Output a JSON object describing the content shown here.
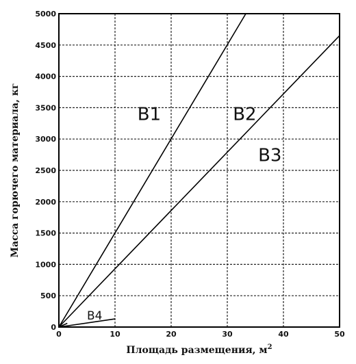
{
  "chart_data": {
    "type": "line",
    "title": "",
    "xlabel": "Площадь размещения, м",
    "xlabel_superscript": "2",
    "ylabel": "Масса горючего материала, кг",
    "xlim": [
      0,
      50
    ],
    "ylim": [
      0,
      5000
    ],
    "xticks": [
      0,
      10,
      20,
      30,
      40,
      50
    ],
    "yticks": [
      0,
      500,
      1000,
      1500,
      2000,
      2500,
      3000,
      3500,
      4000,
      4500,
      5000
    ],
    "grid": true,
    "legend": "none",
    "series": [
      {
        "name": "B1",
        "x": [
          0,
          33.3
        ],
        "y": [
          0,
          5000
        ],
        "label_at": [
          14,
          3300
        ]
      },
      {
        "name": "B2",
        "x": [
          0,
          50
        ],
        "y": [
          0,
          4650
        ],
        "label_at": [
          31,
          3300
        ]
      },
      {
        "name": "B3",
        "x": [
          0,
          10
        ],
        "y": [
          0,
          130
        ],
        "label_at": [
          35.5,
          2650
        ]
      },
      {
        "name": "B4",
        "x": [
          0,
          1.5
        ],
        "y": [
          0,
          60
        ],
        "label_at": [
          5,
          120
        ]
      }
    ]
  }
}
